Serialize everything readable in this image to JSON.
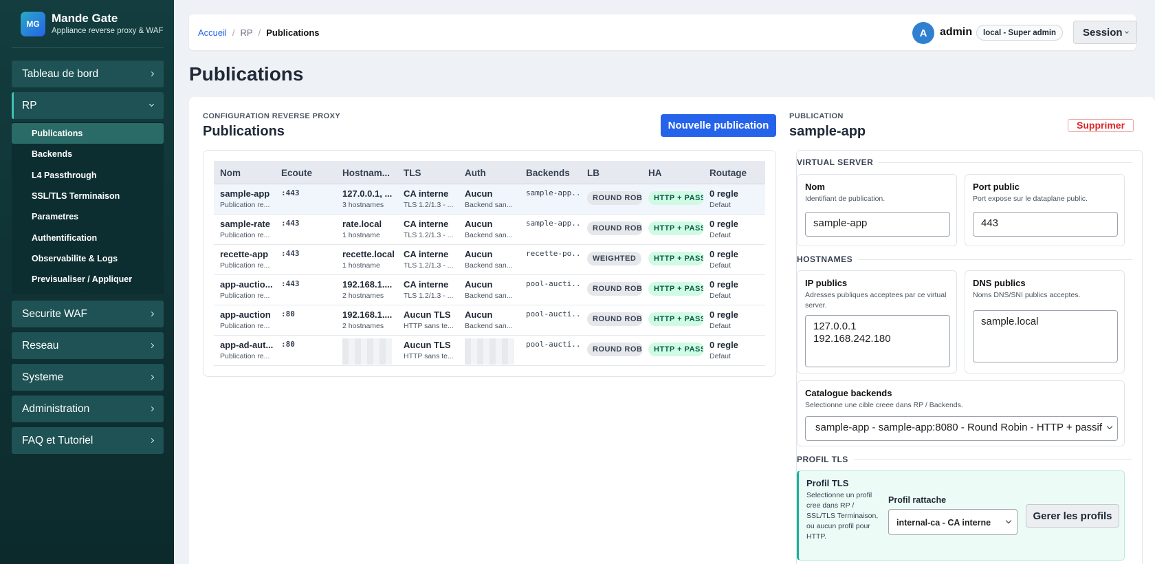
{
  "sidebar": {
    "brand": {
      "logo": "MG",
      "name": "Mande Gate",
      "tagline": "Appliance reverse proxy & WAF"
    },
    "nav_top": [
      "Tableau de bord"
    ],
    "rp": {
      "label": "RP",
      "items": [
        "Publications",
        "Backends",
        "L4 Passthrough",
        "SSL/TLS Terminaison",
        "Parametres",
        "Authentification",
        "Observabilite & Logs",
        "Previsualiser / Appliquer"
      ]
    },
    "nav_bottom": [
      "Securite WAF",
      "Reseau",
      "Systeme",
      "Administration",
      "FAQ et Tutoriel"
    ]
  },
  "header": {
    "breadcrumb": [
      "Accueil",
      "RP",
      "Publications"
    ],
    "separator": "/",
    "avatar": "A",
    "user": "admin",
    "role": "local - Super admin",
    "session": "Session"
  },
  "page_title": "Publications",
  "list": {
    "eyebrow": "CONFIGURATION REVERSE PROXY",
    "title": "Publications",
    "new_button": "Nouvelle publication",
    "table": {
      "columns": [
        "Nom",
        "Ecoute",
        "Hostnam...",
        "TLS",
        "Auth",
        "Backends",
        "LB",
        "HA",
        "Routage"
      ],
      "rows": [
        {
          "nom": "sample-app",
          "nom_sub": "Publication re...",
          "ecoute": ":443",
          "host": "127.0.0.1, ...",
          "host_sub": "3 hostnames",
          "tls": "CA interne",
          "tls_sub": "TLS 1.2/1.3 - ...",
          "auth": "Aucun",
          "auth_sub": "Backend san...",
          "backends": "sample-app...",
          "lb": "ROUND ROBIN",
          "ha": "HTTP + PASSIF",
          "routage": "0 regle",
          "routage_sub": "Defaut"
        },
        {
          "nom": "sample-rate",
          "nom_sub": "Publication re...",
          "ecoute": ":443",
          "host": "rate.local",
          "host_sub": "1 hostname",
          "tls": "CA interne",
          "tls_sub": "TLS 1.2/1.3 - ...",
          "auth": "Aucun",
          "auth_sub": "Backend san...",
          "backends": "sample-app...",
          "lb": "ROUND ROBIN",
          "ha": "HTTP + PASSIF",
          "routage": "0 regle",
          "routage_sub": "Defaut"
        },
        {
          "nom": "recette-app",
          "nom_sub": "Publication re...",
          "ecoute": ":443",
          "host": "recette.local",
          "host_sub": "1 hostname",
          "tls": "CA interne",
          "tls_sub": "TLS 1.2/1.3 - ...",
          "auth": "Aucun",
          "auth_sub": "Backend san...",
          "backends": "recette-po...",
          "lb": "WEIGHTED",
          "ha": "HTTP + PASSIF",
          "routage": "0 regle",
          "routage_sub": "Defaut"
        },
        {
          "nom": "app-auctio...",
          "nom_sub": "Publication re...",
          "ecoute": ":443",
          "host": "192.168.1....",
          "host_sub": "2 hostnames",
          "tls": "CA interne",
          "tls_sub": "TLS 1.2/1.3 - ...",
          "auth": "Aucun",
          "auth_sub": "Backend san...",
          "backends": "pool-aucti...",
          "lb": "ROUND ROBIN",
          "ha": "HTTP + PASSIF",
          "routage": "0 regle",
          "routage_sub": "Defaut"
        },
        {
          "nom": "app-auction",
          "nom_sub": "Publication re...",
          "ecoute": ":80",
          "host": "192.168.1....",
          "host_sub": "2 hostnames",
          "tls": "Aucun TLS",
          "tls_sub": "HTTP sans te...",
          "auth": "Aucun",
          "auth_sub": "Backend san...",
          "backends": "pool-aucti...",
          "lb": "ROUND ROBIN",
          "ha": "HTTP + PASSIF",
          "routage": "0 regle",
          "routage_sub": "Defaut"
        },
        {
          "nom": "app-ad-aut...",
          "nom_sub": "Publication re...",
          "ecoute": ":80",
          "tls": "Aucun TLS",
          "tls_sub": "HTTP sans te...",
          "backends": "pool-aucti...",
          "lb": "ROUND ROBIN",
          "ha": "HTTP + PASSIF",
          "routage": "0 regle",
          "routage_sub": "Defaut"
        }
      ]
    }
  },
  "detail": {
    "eyebrow": "PUBLICATION",
    "title": "sample-app",
    "delete": "Supprimer",
    "virtual_server": {
      "legend": "VIRTUAL SERVER",
      "nom": {
        "label": "Nom",
        "help": "Identifiant de publication.",
        "value": "sample-app"
      },
      "port": {
        "label": "Port public",
        "help": "Port expose sur le dataplane public.",
        "value": "443"
      }
    },
    "hostnames": {
      "legend": "HOSTNAMES",
      "ip": {
        "label": "IP publics",
        "help": "Adresses publiques acceptees par ce virtual server.",
        "lines": [
          "127.0.0.1",
          "192.168.242.180"
        ]
      },
      "dns": {
        "label": "DNS publics",
        "help": "Noms DNS/SNI publics acceptes.",
        "lines": [
          "sample.local"
        ]
      }
    },
    "catalogue": {
      "label": "Catalogue backends",
      "help": "Selectionne une cible creee dans RP / Backends.",
      "value": "sample-app - sample-app:8080 - Round Robin - HTTP + passif"
    },
    "tls": {
      "legend": "PROFIL TLS",
      "card_title": "Profil TLS",
      "help": "Selectionne un profil cree dans RP / SSL/TLS Terminaison, ou aucun profil pour HTTP.",
      "select_label": "Profil rattache",
      "select_value": "internal-ca - CA interne",
      "button": "Gerer les profils"
    }
  }
}
